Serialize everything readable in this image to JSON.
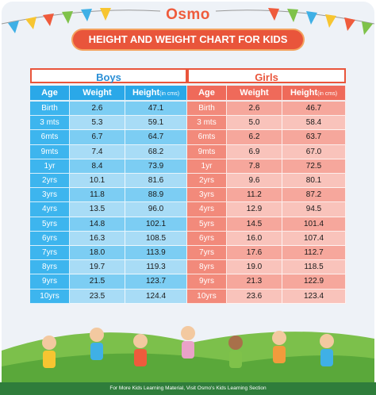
{
  "header": {
    "logo": "Osmo",
    "title": "HEIGHT AND WEIGHT CHART FOR KIDS"
  },
  "table": {
    "groups": [
      {
        "name": "Boys",
        "columns": [
          "Age",
          "Weight",
          {
            "main": "Height",
            "unit": "(in cms)"
          }
        ],
        "rows": [
          [
            "Birth",
            "2.6",
            "47.1"
          ],
          [
            "3 mts",
            "5.3",
            "59.1"
          ],
          [
            "6mts",
            "6.7",
            "64.7"
          ],
          [
            "9mts",
            "7.4",
            "68.2"
          ],
          [
            "1yr",
            "8.4",
            "73.9"
          ],
          [
            "2yrs",
            "10.1",
            "81.6"
          ],
          [
            "3yrs",
            "11.8",
            "88.9"
          ],
          [
            "4yrs",
            "13.5",
            "96.0"
          ],
          [
            "5yrs",
            "14.8",
            "102.1"
          ],
          [
            "6yrs",
            "16.3",
            "108.5"
          ],
          [
            "7yrs",
            "18.0",
            "113.9"
          ],
          [
            "8yrs",
            "19.7",
            "119.3"
          ],
          [
            "9yrs",
            "21.5",
            "123.7"
          ],
          [
            "10yrs",
            "23.5",
            "124.4"
          ]
        ]
      },
      {
        "name": "Girls",
        "columns": [
          "Age",
          "Weight",
          {
            "main": "Height",
            "unit": "(in cms)"
          }
        ],
        "rows": [
          [
            "Birth",
            "2.6",
            "46.7"
          ],
          [
            "3 mts",
            "5.0",
            "58.4"
          ],
          [
            "6mts",
            "6.2",
            "63.7"
          ],
          [
            "9mts",
            "6.9",
            "67.0"
          ],
          [
            "1yr",
            "7.8",
            "72.5"
          ],
          [
            "2yrs",
            "9.6",
            "80.1"
          ],
          [
            "3yrs",
            "11.2",
            "87.2"
          ],
          [
            "4yrs",
            "12.9",
            "94.5"
          ],
          [
            "5yrs",
            "14.5",
            "101.4"
          ],
          [
            "6yrs",
            "16.0",
            "107.4"
          ],
          [
            "7yrs",
            "17.6",
            "112.7"
          ],
          [
            "8yrs",
            "19.0",
            "118.5"
          ],
          [
            "9yrs",
            "21.3",
            "122.9"
          ],
          [
            "10yrs",
            "23.6",
            "123.4"
          ]
        ]
      }
    ]
  },
  "footer": "For More Kids Learning Material, Visit Osmo's Kids Learning Section"
}
